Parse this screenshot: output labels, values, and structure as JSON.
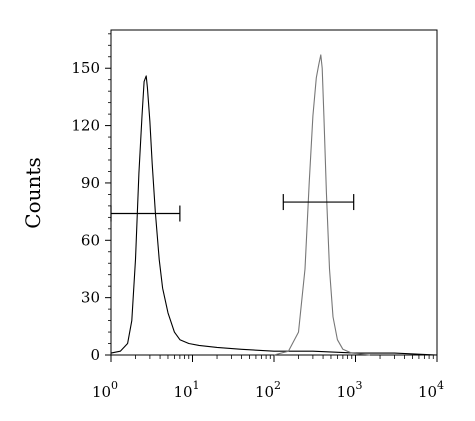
{
  "chart_data": {
    "type": "line",
    "title": "",
    "xlabel": "",
    "ylabel": "Counts",
    "xscale": "log",
    "xlim": [
      1,
      10000
    ],
    "ylim": [
      0,
      170
    ],
    "yticks": [
      0,
      30,
      60,
      90,
      120,
      150
    ],
    "xticks": [
      {
        "value": 1,
        "base": "10",
        "exp": "0"
      },
      {
        "value": 10,
        "base": "10",
        "exp": "1"
      },
      {
        "value": 100,
        "base": "10",
        "exp": "2"
      },
      {
        "value": 1000,
        "base": "10",
        "exp": "3"
      },
      {
        "value": 10000,
        "base": "10",
        "exp": "4"
      }
    ],
    "grid": false,
    "series": [
      {
        "color": "#000000",
        "x": [
          1.0,
          1.3,
          1.6,
          1.8,
          2.0,
          2.2,
          2.4,
          2.55,
          2.7,
          2.8,
          3.0,
          3.2,
          3.5,
          3.9,
          4.3,
          5.0,
          6.0,
          7.0,
          9.0,
          12.0,
          20.0,
          40.0,
          100.0,
          300.0,
          1000.0,
          3000.0,
          10000.0
        ],
        "y": [
          1,
          2,
          6,
          18,
          50,
          95,
          125,
          143,
          146,
          140,
          122,
          100,
          75,
          50,
          35,
          22,
          12,
          8,
          6,
          5,
          4,
          3,
          2,
          2,
          1,
          1,
          0
        ]
      },
      {
        "color": "#777777",
        "x": [
          100.0,
          150.0,
          200.0,
          240.0,
          270.0,
          300.0,
          330.0,
          355.0,
          375.0,
          390.0,
          410.0,
          440.0,
          480.0,
          530.0,
          600.0,
          700.0,
          900.0,
          1500.0
        ],
        "y": [
          0,
          2,
          12,
          45,
          90,
          125,
          145,
          152,
          157,
          150,
          125,
          85,
          45,
          20,
          8,
          3,
          1,
          0
        ]
      }
    ],
    "annotations": [
      {
        "type": "gate",
        "x1": 1.0,
        "x2": 7.0,
        "y": 74
      },
      {
        "type": "gate",
        "x1": 130.0,
        "x2": 950.0,
        "y": 80
      }
    ]
  }
}
